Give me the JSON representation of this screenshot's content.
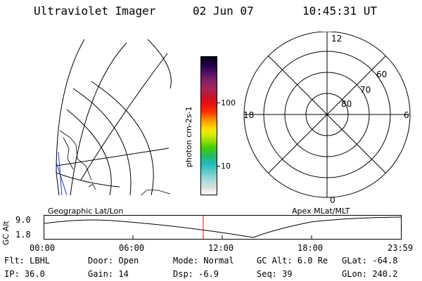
{
  "header": {
    "instrument": "Ultraviolet Imager",
    "date": "02 Jun 07",
    "time": "10:45:31 UT"
  },
  "colorbar": {
    "label": "photon cm-2s-1",
    "ticks": [
      "100",
      "10"
    ],
    "colors": [
      "#000010",
      "#220044",
      "#551166",
      "#882266",
      "#aa2255",
      "#cc1122",
      "#ee1111",
      "#ff3300",
      "#ff7700",
      "#ffaa00",
      "#ffdd00",
      "#ddee00",
      "#99dd00",
      "#44cc00",
      "#22bb66",
      "#22bbbb",
      "#66cccc",
      "#aadddd",
      "#dddddd",
      "#ffffff"
    ]
  },
  "polar": {
    "mlt_labels": {
      "top": "12",
      "left": "18",
      "right": "6",
      "bottom": "0"
    },
    "lat_labels": [
      "60",
      "70",
      "80"
    ]
  },
  "panels": {
    "left_label": "Geographic Lat/Lon",
    "right_label": "Apex MLat/MLT"
  },
  "timeline": {
    "ylabel": "GC Alt",
    "ymax": "9.0",
    "ymin": "1.8",
    "xticks": [
      "00:00",
      "06:00",
      "12:00",
      "18:00",
      "23:59"
    ],
    "marker_color": "#ff0000"
  },
  "status": {
    "flt": "Flt: LBHL",
    "ip": "IP: 36.0",
    "door": "Door: Open",
    "gain": "Gain: 14",
    "mode": "Mode: Normal",
    "dsp": "Dsp:  -6.9",
    "gcalt": "GC Alt: 6.0 Re",
    "seq": "Seq: 39",
    "glat": "GLat: -64.8",
    "glon": "GLon: 240.2"
  }
}
